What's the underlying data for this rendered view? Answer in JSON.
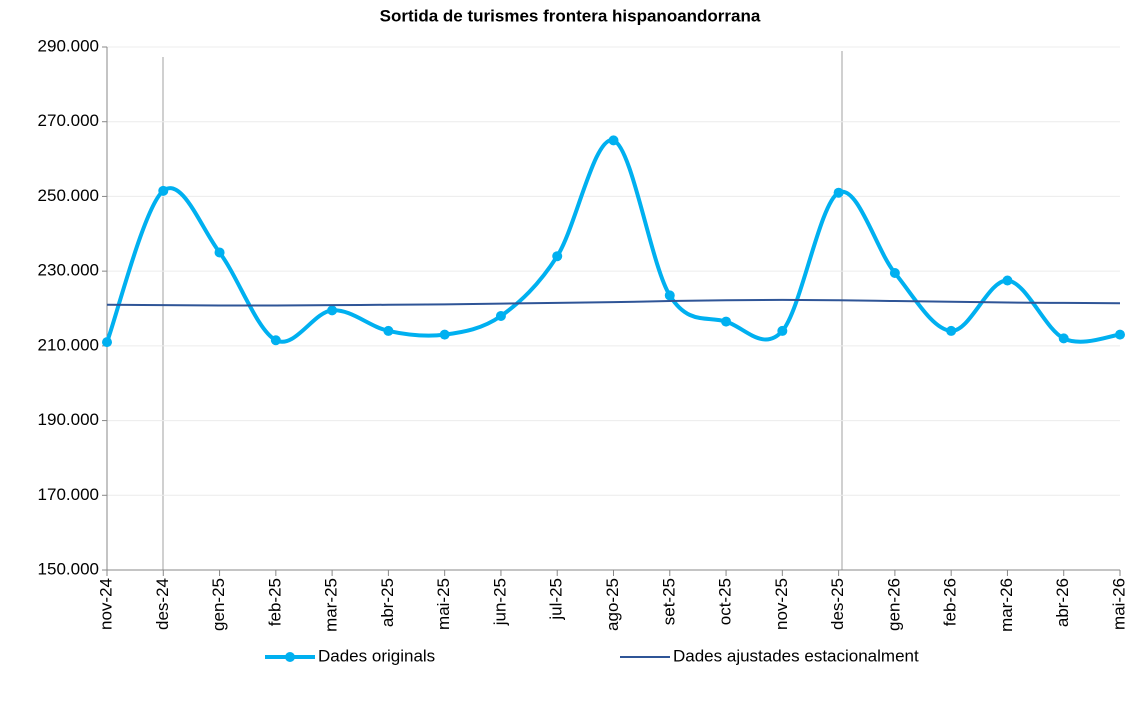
{
  "chart_data": {
    "type": "line",
    "title": "Sortida de turismes frontera hispanoandorrana",
    "categories": [
      "nov-24",
      "des-24",
      "gen-25",
      "feb-25",
      "mar-25",
      "abr-25",
      "mai-25",
      "jun-25",
      "jul-25",
      "ago-25",
      "set-25",
      "oct-25",
      "nov-25",
      "des-25",
      "gen-26",
      "feb-26",
      "mar-26",
      "abr-26",
      "mai-26"
    ],
    "series": [
      {
        "name": "Dades originals",
        "color": "#00b0f0",
        "markers": true,
        "values": [
          211000,
          251500,
          235000,
          211500,
          219500,
          214000,
          213000,
          218000,
          234000,
          265000,
          223500,
          216500,
          214000,
          251000,
          229500,
          214000,
          227500,
          212000,
          213000
        ]
      },
      {
        "name": "Dades ajustades estacionalment",
        "color": "#2f5597",
        "markers": false,
        "values": [
          221000,
          220900,
          220800,
          220800,
          220900,
          221000,
          221100,
          221300,
          221500,
          221700,
          222000,
          222200,
          222300,
          222200,
          222000,
          221800,
          221600,
          221500,
          221400
        ]
      }
    ],
    "ylim": [
      150000,
      290000
    ],
    "yticks": [
      {
        "value": 150000,
        "label": "150.000"
      },
      {
        "value": 170000,
        "label": "170.000"
      },
      {
        "value": 190000,
        "label": "190.000"
      },
      {
        "value": 210000,
        "label": "210.000"
      },
      {
        "value": 230000,
        "label": "230.000"
      },
      {
        "value": 250000,
        "label": "250.000"
      },
      {
        "value": 270000,
        "label": "270.000"
      },
      {
        "value": 290000,
        "label": "290.000"
      }
    ],
    "grid": true,
    "smooth": true,
    "legend": "bottom"
  }
}
